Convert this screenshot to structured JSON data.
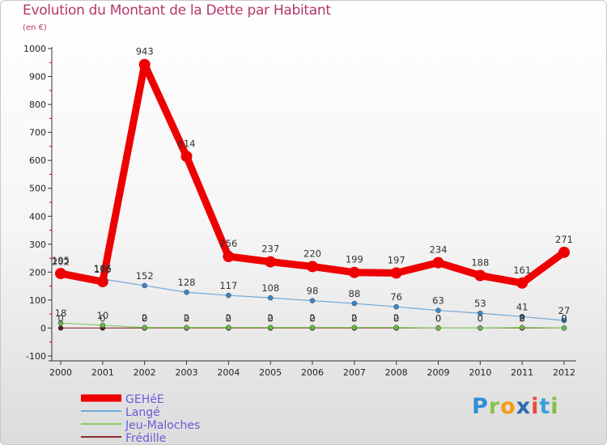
{
  "title": "Evolution du Montant de la Dette par Habitant",
  "subtitle": "(en €)",
  "logo": {
    "letters": [
      "P",
      "r",
      "o",
      "x",
      "i",
      "t",
      "i"
    ]
  },
  "colors": {
    "title": "#b5376a",
    "legend_text": "#6a5cd8",
    "axis": "#333333",
    "tick_mark": "#cc0000"
  },
  "chart_data": {
    "type": "line",
    "title": "Evolution du Montant de la Dette par Habitant",
    "ylabel": "(en €)",
    "xlabel": "",
    "x": [
      "2000",
      "2001",
      "2002",
      "2003",
      "2004",
      "2005",
      "2006",
      "2007",
      "2008",
      "2009",
      "2010",
      "2011",
      "2012"
    ],
    "ylim": [
      -100,
      1000
    ],
    "yticks": [
      -100,
      0,
      100,
      200,
      300,
      400,
      500,
      600,
      700,
      800,
      900,
      1000
    ],
    "grid": false,
    "legend_position": "bottom-left",
    "series": [
      {
        "name": "GEHéE",
        "color": "#ee0000",
        "style": "thick",
        "values": [
          195,
          166,
          943,
          614,
          256,
          237,
          220,
          199,
          197,
          234,
          188,
          161,
          271
        ],
        "labels": [
          "195",
          "166",
          "943",
          "614",
          "256",
          "237",
          "220",
          "199",
          "197",
          "234",
          "188",
          "161",
          "271"
        ]
      },
      {
        "name": "Langé",
        "color": "#6fa8d8",
        "marker": "#3a86c8",
        "style": "thin",
        "values": [
          202,
          175,
          152,
          128,
          117,
          108,
          98,
          88,
          76,
          63,
          53,
          41,
          27
        ],
        "labels": [
          "202",
          "175",
          "152",
          "128",
          "117",
          "108",
          "98",
          "88",
          "76",
          "63",
          "53",
          "41",
          "27"
        ]
      },
      {
        "name": "Jeu-Maloches",
        "color": "#88cc66",
        "marker": "#66bb44",
        "style": "thin",
        "values": [
          18,
          10,
          2,
          2,
          2,
          2,
          2,
          2,
          2,
          0,
          0,
          2,
          0
        ],
        "labels": [
          "18",
          "10",
          "2",
          "2",
          "2",
          "2",
          "2",
          "2",
          "2",
          "0",
          "0",
          "2",
          "0"
        ]
      },
      {
        "name": "Frédille",
        "color": "#8a2b2b",
        "marker": "#5a1a1a",
        "style": "thin",
        "values": [
          0,
          0,
          0,
          0,
          0,
          0,
          0,
          0,
          0,
          0,
          0,
          0,
          0
        ],
        "labels": [
          "0",
          "0",
          "0",
          "0",
          "0",
          "0",
          "0",
          "0",
          "0",
          "0",
          "0",
          "0",
          "0"
        ]
      }
    ]
  }
}
